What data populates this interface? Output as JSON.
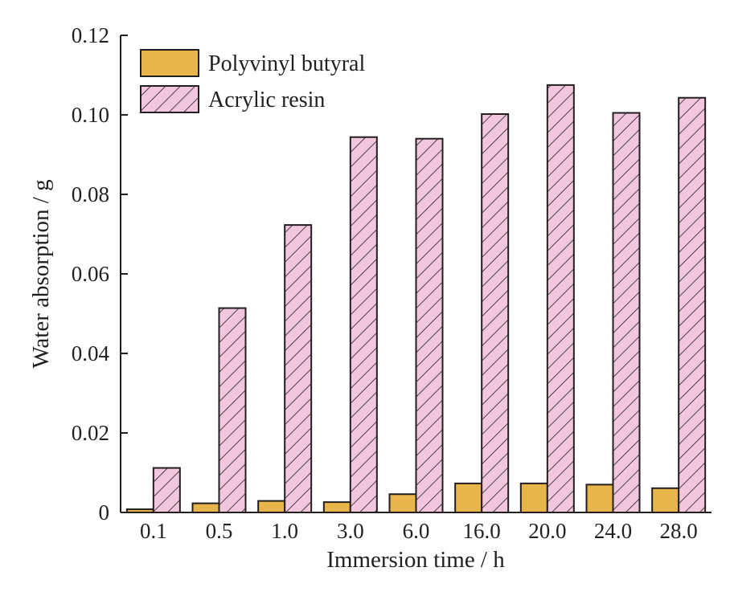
{
  "chart_data": {
    "type": "bar",
    "title": "",
    "xlabel": "Immersion time / h",
    "ylabel": "Water absorption / g",
    "categories": [
      "0.1",
      "0.5",
      "1.0",
      "3.0",
      "6.0",
      "16.0",
      "20.0",
      "24.0",
      "28.0"
    ],
    "series": [
      {
        "name": "Polyvinyl butyral",
        "color": "#e8b54a",
        "pattern": "solid",
        "values": [
          0.0008,
          0.0023,
          0.0029,
          0.0026,
          0.0046,
          0.0073,
          0.0073,
          0.007,
          0.0061
        ]
      },
      {
        "name": "Acrylic resin",
        "color": "#f2c6dc",
        "pattern": "diagonal-hatch",
        "values": [
          0.0112,
          0.0514,
          0.0723,
          0.0944,
          0.094,
          0.1002,
          0.1075,
          0.1005,
          0.1043
        ]
      }
    ],
    "ylim": [
      0,
      0.12
    ],
    "yticks": [
      "0",
      "0.02",
      "0.04",
      "0.06",
      "0.08",
      "0.10",
      "0.12"
    ],
    "grid": false,
    "legend_position": "top-left"
  }
}
